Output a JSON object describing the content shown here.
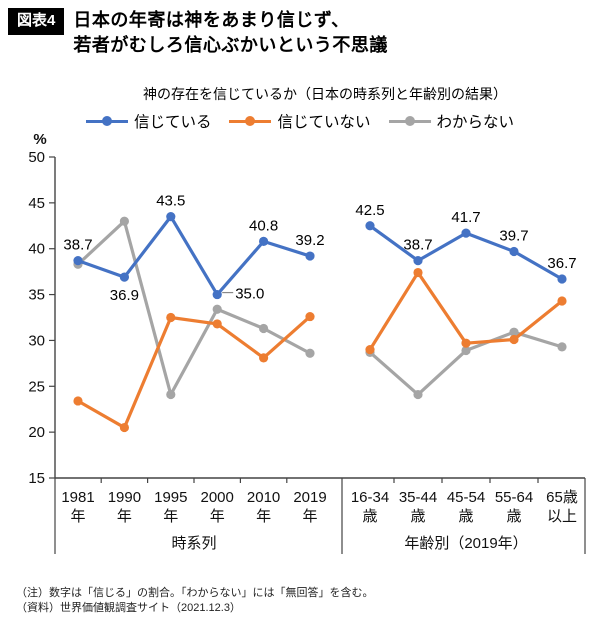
{
  "figure_badge": "図表4",
  "title_line1": "日本の年寄は神をあまり信じず、",
  "title_line2": "若者がむしろ信心ぶかいという不思議",
  "notes": {
    "note1": "（注）数字は「信じる」の割合。「わからない」には「無回答」を含む。",
    "note2": "（資料）世界価値観調査サイト（2021.12.3）"
  },
  "chart_data": {
    "type": "line",
    "title": "神の存在を信じているか（日本の時系列と年齢別の結果）",
    "ylabel": "%",
    "ylim": [
      15,
      50
    ],
    "ytick_step": 5,
    "grid": false,
    "legend_position": "top",
    "groups": [
      {
        "label": "時系列",
        "categories": [
          "1981年",
          "1990年",
          "1995年",
          "2000年",
          "2010年",
          "2019年"
        ]
      },
      {
        "label": "年齢別（2019年）",
        "categories": [
          "16-34歳",
          "35-44歳",
          "45-54歳",
          "55-64歳",
          "65歳以上"
        ]
      }
    ],
    "series": [
      {
        "name": "信じている",
        "color": "#4472C4",
        "data_labels": true,
        "values": [
          [
            38.7,
            36.9,
            43.5,
            35.0,
            40.8,
            39.2
          ],
          [
            42.5,
            38.7,
            41.7,
            39.7,
            36.7
          ]
        ]
      },
      {
        "name": "信じていない",
        "color": "#ED7D31",
        "data_labels": false,
        "values": [
          [
            23.4,
            20.5,
            32.5,
            31.8,
            28.1,
            32.6
          ],
          [
            29.0,
            37.4,
            29.7,
            30.1,
            34.3
          ]
        ]
      },
      {
        "name": "わからない",
        "color": "#A5A5A5",
        "data_labels": false,
        "values": [
          [
            38.3,
            43.0,
            24.1,
            33.4,
            31.3,
            28.6
          ],
          [
            28.7,
            24.1,
            28.9,
            30.9,
            29.3
          ]
        ]
      }
    ]
  }
}
